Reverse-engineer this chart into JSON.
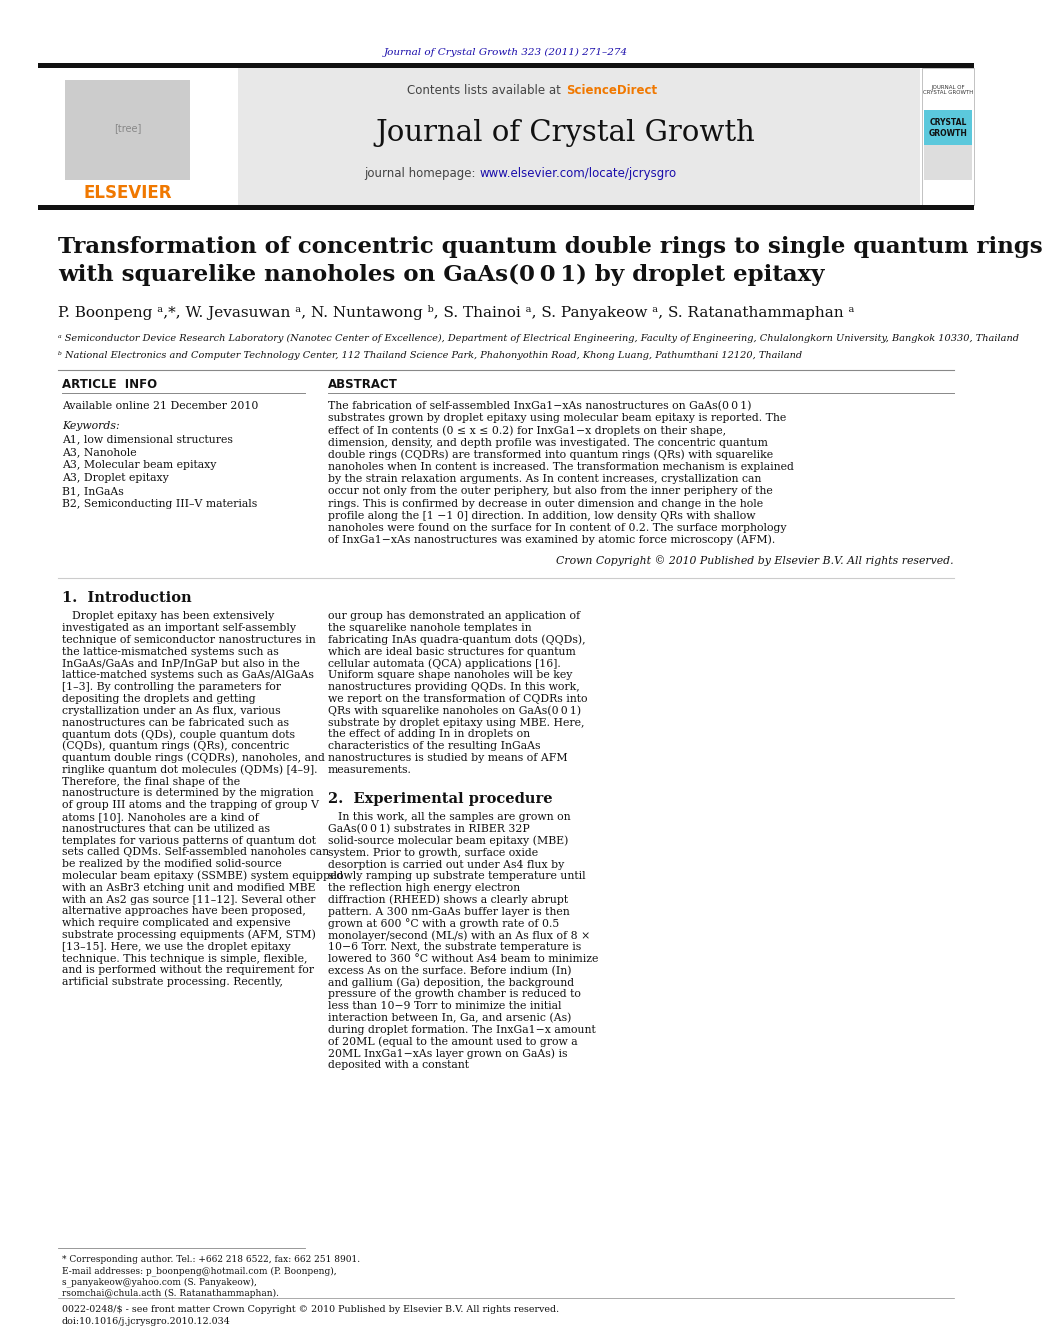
{
  "journal_ref": "Journal of Crystal Growth 323 (2011) 271–274",
  "journal_ref_color": "#1a0dab",
  "header_bg": "#e8e8e8",
  "contents_text": "Contents lists available at ",
  "sciencedirect_text": "ScienceDirect",
  "sciencedirect_color": "#f07800",
  "journal_name": "Journal of Crystal Growth",
  "journal_url_color": "#1a0dab",
  "title_line1": "Transformation of concentric quantum double rings to single quantum rings",
  "title_line2": "with squarelike nanoholes on GaAs(0 0 1) by droplet epitaxy",
  "authors": "P. Boonpeng ᵃ,*, W. Jevasuwan ᵃ, N. Nuntawong ᵇ, S. Thainoi ᵃ, S. Panyakeow ᵃ, S. Ratanathammaphan ᵃ",
  "affil_a": "ᵃ Semiconductor Device Research Laboratory (Nanotec Center of Excellence), Department of Electrical Engineering, Faculty of Engineering, Chulalongkorn University, Bangkok 10330, Thailand",
  "affil_b": "ᵇ National Electronics and Computer Technology Center, 112 Thailand Science Park, Phahonyothin Road, Khong Luang, Pathumthani 12120, Thailand",
  "article_info_title": "ARTICLE  INFO",
  "available_online": "Available online 21 December 2010",
  "keywords_title": "Keywords:",
  "keywords": [
    "A1, low dimensional structures",
    "A3, Nanohole",
    "A3, Molecular beam epitaxy",
    "A3, Droplet epitaxy",
    "B1, InGaAs",
    "B2, Semiconducting III–V materials"
  ],
  "abstract_title": "ABSTRACT",
  "abstract_text": "The fabrication of self-assembled InxGa1−xAs nanostructures on GaAs(0 0 1) substrates grown by droplet epitaxy using molecular beam epitaxy is reported. The effect of In contents (0 ≤ x ≤ 0.2) for InxGa1−x droplets on their shape, dimension, density, and depth profile was investigated. The concentric quantum double rings (CQDRs) are transformed into quantum rings (QRs) with squarelike nanoholes when In content is increased. The transformation mechanism is explained by the strain relaxation arguments. As In content increases, crystallization can occur not only from the outer periphery, but also from the inner periphery of the rings. This is confirmed by decrease in outer dimension and change in the hole profile along the [1 −1 0] direction. In addition, low density QRs with shallow nanoholes were found on the surface for In content of 0.2. The surface morphology of InxGa1−xAs nanostructures was examined by atomic force microscopy (AFM).",
  "copyright_text": "Crown Copyright © 2010 Published by Elsevier B.V. All rights reserved.",
  "intro_title": "1.  Introduction",
  "intro_col1_para1": "Droplet epitaxy has been extensively investigated as an important self-assembly technique of semiconductor nanostructures in the lattice-mismatched systems such as InGaAs/GaAs and InP/InGaP but also in the lattice-matched systems such as GaAs/AlGaAs [1–3]. By controlling the parameters for depositing the droplets and getting crystallization under an As flux, various nanostructures can be fabricated such as quantum dots (QDs), couple quantum dots (CQDs), quantum rings (QRs), concentric quantum double rings (CQDRs), nanoholes, and ringlike quantum dot molecules (QDMs) [4–9]. Therefore, the final shape of the nanostructure is determined by the migration of group III atoms and the trapping of group V atoms [10]. Nanoholes are a kind of nanostructures that can be utilized as templates for various patterns of quantum dot sets called QDMs. Self-assembled nanoholes can be realized by the modified solid-source molecular beam epitaxy (SSMBE) system equipped with an AsBr3 etching unit and modified MBE with an As2 gas source [11–12]. Several other alternative approaches have been proposed, which require complicated and expensive substrate processing equipments (AFM, STM) [13–15]. Here, we use the droplet epitaxy technique. This technique is simple, flexible, and is performed without the requirement for artificial substrate processing. Recently,",
  "intro_col2_para1": "our group has demonstrated an application of the squarelike nanohole templates in fabricating InAs quadra-quantum dots (QQDs), which are ideal basic structures for quantum cellular automata (QCA) applications [16]. Uniform square shape nanoholes will be key nanostructures providing QQDs. In this work, we report on the transformation of CQDRs into QRs with squarelike nanoholes on GaAs(0 0 1) substrate by droplet epitaxy using MBE. Here, the effect of adding In in droplets on characteristics of the resulting InGaAs nanostructures is studied by means of AFM measurements.",
  "exp_title": "2.  Experimental procedure",
  "exp_col2_para1": "In this work, all the samples are grown on GaAs(0 0 1) substrates in RIBER 32P solid-source molecular beam epitaxy (MBE) system. Prior to growth, surface oxide desorption is carried out under As4 flux by slowly ramping up substrate temperature until the reflection high energy electron diffraction (RHEED) shows a clearly abrupt pattern. A 300 nm-GaAs buffer layer is then grown at 600 °C with a growth rate of 0.5 monolayer/second (ML/s) with an As flux of 8 × 10−6 Torr. Next, the substrate temperature is lowered to 360 °C without As4 beam to minimize excess As on the surface. Before indium (In) and gallium (Ga) deposition, the background pressure of the growth chamber is reduced to less than 10−9 Torr to minimize the initial interaction between In, Ga, and arsenic (As) during droplet formation. The InxGa1−x amount of 20ML (equal to the amount used to grow a 20ML InxGa1−xAs layer grown on GaAs) is deposited with a constant",
  "footnote_star": "* Corresponding author. Tel.: +662 218 6522, fax: 662 251 8901.",
  "footnote_email": "E-mail addresses: p_boonpeng@hotmail.com (P. Boonpeng),",
  "footnote_email2": "s_panyakeow@yahoo.com (S. Panyakeow),",
  "footnote_email3": "rsomchai@chula.acth (S. Ratanathammaphan).",
  "footer_left": "0022-0248/$ - see front matter Crown Copyright © 2010 Published by Elsevier B.V. All rights reserved.",
  "footer_doi": "doi:10.1016/j.jcrysgro.2010.12.034",
  "page_bg": "#ffffff",
  "text_color": "#000000"
}
